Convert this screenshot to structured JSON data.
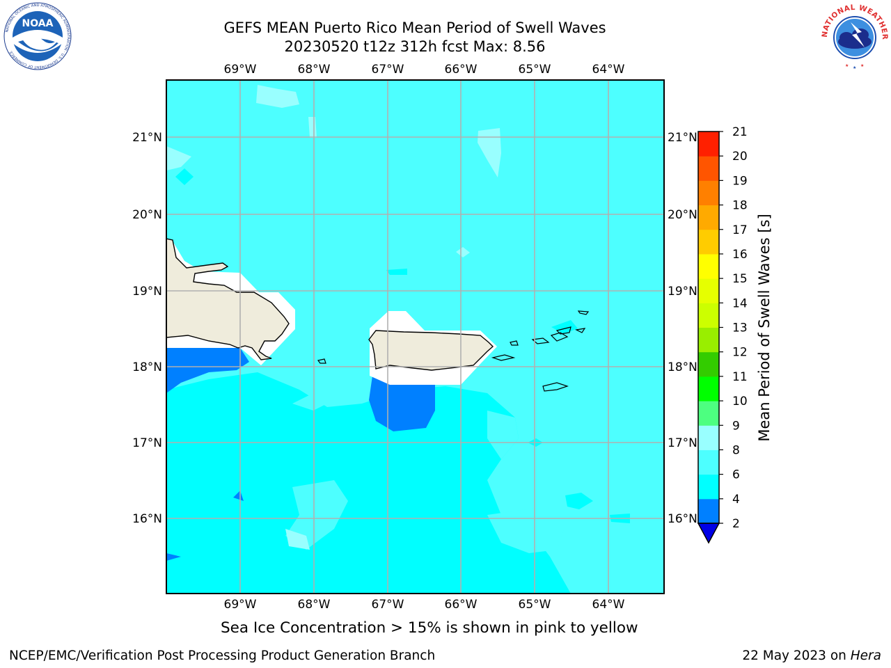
{
  "title": {
    "line1": "GEFS MEAN Puerto Rico Mean Period of Swell Waves",
    "line2": "20230520 t12z 312h fcst   Max: 8.56"
  },
  "map": {
    "lon_ticks": [
      "69°W",
      "68°W",
      "67°W",
      "66°W",
      "65°W",
      "64°W"
    ],
    "lat_ticks": [
      "21°N",
      "20°N",
      "19°N",
      "18°N",
      "17°N",
      "16°N"
    ],
    "lon_range": [
      -70,
      -63.25
    ],
    "lat_range": [
      15,
      21.75
    ],
    "gridlines": true
  },
  "colorbar": {
    "label": "Mean Period of Swell Waves [s]",
    "ticks": [
      "2",
      "4",
      "6",
      "8",
      "9",
      "10",
      "11",
      "12",
      "13",
      "14",
      "15",
      "16",
      "17",
      "18",
      "19",
      "20",
      "21"
    ],
    "colors": [
      "#0000e6",
      "#0080ff",
      "#00ffff",
      "#4dffff",
      "#99ffff",
      "#4dff80",
      "#00ff00",
      "#33cc00",
      "#99ee00",
      "#ccff00",
      "#e6ff00",
      "#ffff00",
      "#ffcc00",
      "#ffaa00",
      "#ff8000",
      "#ff5500",
      "#ff2000",
      "#ff0000"
    ],
    "extend": "min"
  },
  "subtitle": "Sea Ice Concentration > 15% is shown in pink to yellow",
  "footer": {
    "left": "NCEP/EMC/Verification Post Processing Product Generation Branch",
    "right_date": "22 May 2023 on ",
    "right_machine": "Hera"
  },
  "logos": {
    "noaa_icon": "noaa-logo",
    "noaa_text": "NOAA",
    "noaa_ring": "NATIONAL OCEANIC AND ATMOSPHERIC ADMINISTRATION · U.S. DEPARTMENT OF COMMERCE",
    "nws_icon": "nws-logo",
    "nws_ring": "NATIONAL WEATHER SERVICE"
  },
  "colors": {
    "ocean_main": "#4dffff",
    "ocean_south": "#00ffff",
    "ocean_light": "#99ffff",
    "deep": "#0080ff",
    "land": "#efecdc",
    "mask": "#ffffff"
  }
}
